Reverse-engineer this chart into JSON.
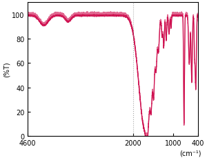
{
  "ylabel": "(%T)",
  "xlabel": "(cm⁻¹)",
  "xlim": [
    4600,
    400
  ],
  "ylim": [
    0,
    110
  ],
  "yticks": [
    0,
    20,
    40,
    60,
    80,
    100
  ],
  "xticks": [
    4600,
    2000,
    1000,
    400
  ],
  "xtick_labels": [
    "4600",
    "2000",
    "1000",
    "400"
  ],
  "dotted_line_x": 2000,
  "line_color": "#cc0044",
  "background_color": "#ffffff",
  "line_width": 0.9
}
